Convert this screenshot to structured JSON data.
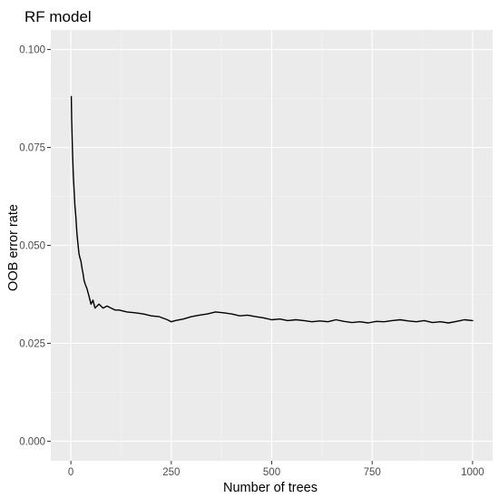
{
  "chart_data": {
    "type": "line",
    "title": "RF model",
    "xlabel": "Number of trees",
    "ylabel": "OOB error rate",
    "xlim": [
      -50,
      1050
    ],
    "ylim": [
      -0.005,
      0.105
    ],
    "x_ticks": [
      0,
      250,
      500,
      750,
      1000
    ],
    "x_tick_labels": [
      "0",
      "250",
      "500",
      "750",
      "1000"
    ],
    "y_ticks": [
      0.0,
      0.025,
      0.05,
      0.075,
      0.1
    ],
    "y_tick_labels": [
      "0.000",
      "0.025",
      "0.050",
      "0.075",
      "0.100"
    ],
    "grid": true,
    "legend": "none",
    "colors": {
      "panel_background": "#ebebeb",
      "grid_major": "#ffffff",
      "grid_minor": "#f5f5f5",
      "line": "#000000",
      "tick_label": "#4d4d4d",
      "tick_mark": "#333333"
    },
    "series": [
      {
        "x": [
          1,
          2,
          4,
          6,
          8,
          10,
          12,
          15,
          18,
          20,
          22,
          25,
          28,
          30,
          33,
          36,
          40,
          45,
          50,
          55,
          60,
          70,
          80,
          90,
          100,
          110,
          120,
          140,
          160,
          180,
          200,
          220,
          240,
          250,
          260,
          280,
          300,
          320,
          340,
          360,
          380,
          400,
          420,
          440,
          460,
          480,
          500,
          520,
          540,
          560,
          580,
          600,
          620,
          640,
          660,
          680,
          700,
          720,
          740,
          760,
          780,
          800,
          820,
          840,
          860,
          880,
          900,
          920,
          940,
          960,
          980,
          1000
        ],
        "y": [
          0.088,
          0.082,
          0.074,
          0.068,
          0.064,
          0.06,
          0.058,
          0.053,
          0.05,
          0.048,
          0.047,
          0.046,
          0.044,
          0.043,
          0.041,
          0.04,
          0.039,
          0.037,
          0.035,
          0.036,
          0.034,
          0.035,
          0.034,
          0.0345,
          0.034,
          0.0335,
          0.0335,
          0.033,
          0.0328,
          0.0325,
          0.032,
          0.0318,
          0.031,
          0.0305,
          0.0308,
          0.0312,
          0.0318,
          0.0322,
          0.0325,
          0.033,
          0.0328,
          0.0325,
          0.032,
          0.0322,
          0.0318,
          0.0315,
          0.031,
          0.0312,
          0.0308,
          0.031,
          0.0308,
          0.0305,
          0.0307,
          0.0305,
          0.031,
          0.0306,
          0.0303,
          0.0305,
          0.0302,
          0.0306,
          0.0305,
          0.0308,
          0.031,
          0.0307,
          0.0305,
          0.0308,
          0.0303,
          0.0305,
          0.0302,
          0.0306,
          0.031,
          0.0308
        ]
      }
    ]
  }
}
